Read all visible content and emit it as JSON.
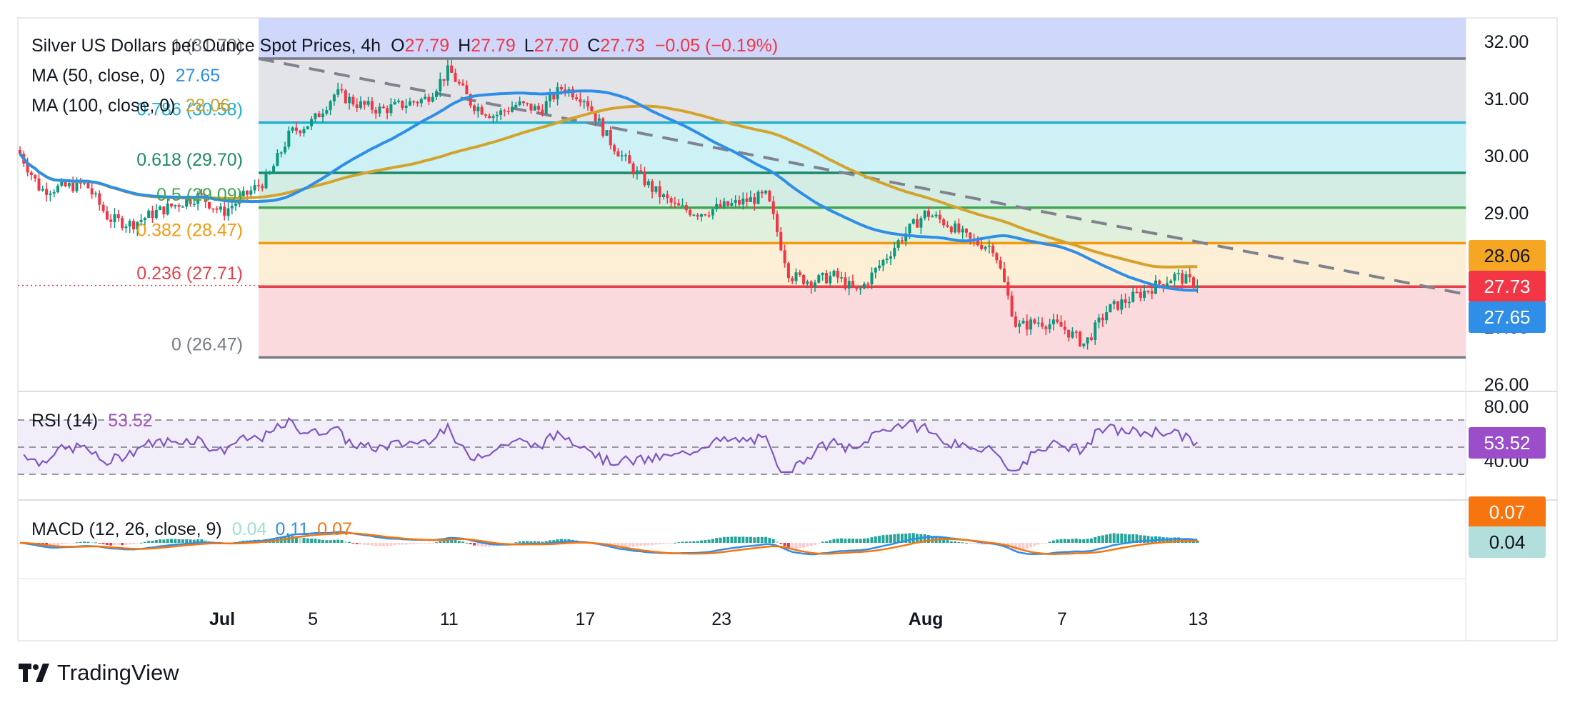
{
  "header": {
    "symbol": "Silver US Dollars per Ounce Spot Prices, 4h",
    "o_label": "O",
    "o_value": "27.79",
    "h_label": "H",
    "h_value": "27.79",
    "l_label": "L",
    "l_value": "27.70",
    "c_label": "C",
    "c_value": "27.73",
    "change": "−0.05 (−0.19%)"
  },
  "ma50": {
    "label": "MA (50, close, 0)",
    "value": "27.65",
    "badge": "27.65",
    "color": "#2e8ee8"
  },
  "ma100": {
    "label": "MA (100, close, 0)",
    "value": "28.06",
    "badge": "28.06",
    "color": "#d4a32d"
  },
  "price_badge": "27.73",
  "price_axis": [
    "32.00",
    "31.00",
    "30.00",
    "29.00",
    "28.00",
    "27.00",
    "26.00"
  ],
  "fib_levels": [
    {
      "label": "1 (31.70)",
      "price": 31.7,
      "color": "#787b86"
    },
    {
      "label": "0.786 (30.58)",
      "price": 30.58,
      "color": "#1fb0cf"
    },
    {
      "label": "0.618 (29.70)",
      "price": 29.7,
      "color": "#1c8a6a"
    },
    {
      "label": "0.5 (29.09)",
      "price": 29.09,
      "color": "#3fa650"
    },
    {
      "label": "0.382 (28.47)",
      "price": 28.47,
      "color": "#f5990f"
    },
    {
      "label": "0.236 (27.71)",
      "price": 27.71,
      "color": "#e8404a"
    },
    {
      "label": "0 (26.47)",
      "price": 26.47,
      "color": "#787b86"
    }
  ],
  "rsi": {
    "label": "RSI (14)",
    "value": "53.52",
    "badge": "53.52",
    "axis": [
      "80.00",
      "40.00"
    ]
  },
  "macd": {
    "label": "MACD (12, 26, close, 9)",
    "hist": "0.04",
    "macd": "0.11",
    "signal": "0.07",
    "badge_signal": "0.07",
    "badge_hist": "0.04"
  },
  "time_axis": [
    "Jul",
    "5",
    "11",
    "17",
    "23",
    "Aug",
    "7",
    "13"
  ],
  "brand": "TradingView",
  "chart_data": {
    "type": "candlestick",
    "title": "Silver US Dollars per Ounce Spot Prices, 4h",
    "ylim": [
      25.9,
      32.4
    ],
    "x_range": [
      "Jun 22",
      "Aug 17"
    ],
    "x_ticks": [
      "Jul 1",
      "Jul 5",
      "Jul 11",
      "Jul 17",
      "Jul 23",
      "Aug 1",
      "Aug 7",
      "Aug 13"
    ],
    "close_path": [
      [
        "Jun 22",
        30.1
      ],
      [
        "Jun 23",
        29.4
      ],
      [
        "Jun 25",
        29.5
      ],
      [
        "Jun 26",
        28.9
      ],
      [
        "Jun 27",
        28.8
      ],
      [
        "Jun 28",
        29.0
      ],
      [
        "Jun 30",
        29.3
      ],
      [
        "Jul 1",
        29.0
      ],
      [
        "Jul 2",
        29.3
      ],
      [
        "Jul 3",
        29.6
      ],
      [
        "Jul 4",
        30.4
      ],
      [
        "Jul 5",
        30.6
      ],
      [
        "Jul 6",
        31.1
      ],
      [
        "Jul 7",
        30.9
      ],
      [
        "Jul 8",
        30.8
      ],
      [
        "Jul 9",
        30.9
      ],
      [
        "Jul 10",
        31.0
      ],
      [
        "Jul 11",
        31.5
      ],
      [
        "Jul 12",
        30.9
      ],
      [
        "Jul 13",
        30.7
      ],
      [
        "Jul 14",
        30.9
      ],
      [
        "Jul 15",
        30.8
      ],
      [
        "Jul 16",
        31.2
      ],
      [
        "Jul 17",
        31.0
      ],
      [
        "Jul 18",
        30.3
      ],
      [
        "Jul 19",
        29.8
      ],
      [
        "Jul 20",
        29.4
      ],
      [
        "Jul 21",
        29.1
      ],
      [
        "Jul 22",
        29.0
      ],
      [
        "Jul 23",
        29.1
      ],
      [
        "Jul 24",
        29.2
      ],
      [
        "Jul 25",
        29.3
      ],
      [
        "Jul 26",
        27.9
      ],
      [
        "Jul 27",
        27.8
      ],
      [
        "Jul 28",
        27.9
      ],
      [
        "Jul 29",
        27.6
      ],
      [
        "Jul 30",
        28.1
      ],
      [
        "Jul 31",
        28.6
      ],
      [
        "Aug 1",
        29.0
      ],
      [
        "Aug 2",
        28.8
      ],
      [
        "Aug 3",
        28.5
      ],
      [
        "Aug 4",
        28.4
      ],
      [
        "Aug 5",
        27.0
      ],
      [
        "Aug 6",
        27.1
      ],
      [
        "Aug 7",
        27.0
      ],
      [
        "Aug 8",
        26.7
      ],
      [
        "Aug 9",
        27.3
      ],
      [
        "Aug 10",
        27.5
      ],
      [
        "Aug 11",
        27.7
      ],
      [
        "Aug 12",
        27.9
      ],
      [
        "Aug 13",
        27.73
      ]
    ],
    "series": [
      {
        "name": "MA (50, close, 0)",
        "last": 27.65
      },
      {
        "name": "MA (100, close, 0)",
        "last": 28.06
      }
    ],
    "rsi": {
      "ylim": [
        20,
        90
      ],
      "levels": [
        70,
        50,
        30
      ],
      "last": 53.52
    },
    "macd": {
      "hist_last": 0.04,
      "macd_last": 0.11,
      "signal_last": 0.07
    }
  }
}
